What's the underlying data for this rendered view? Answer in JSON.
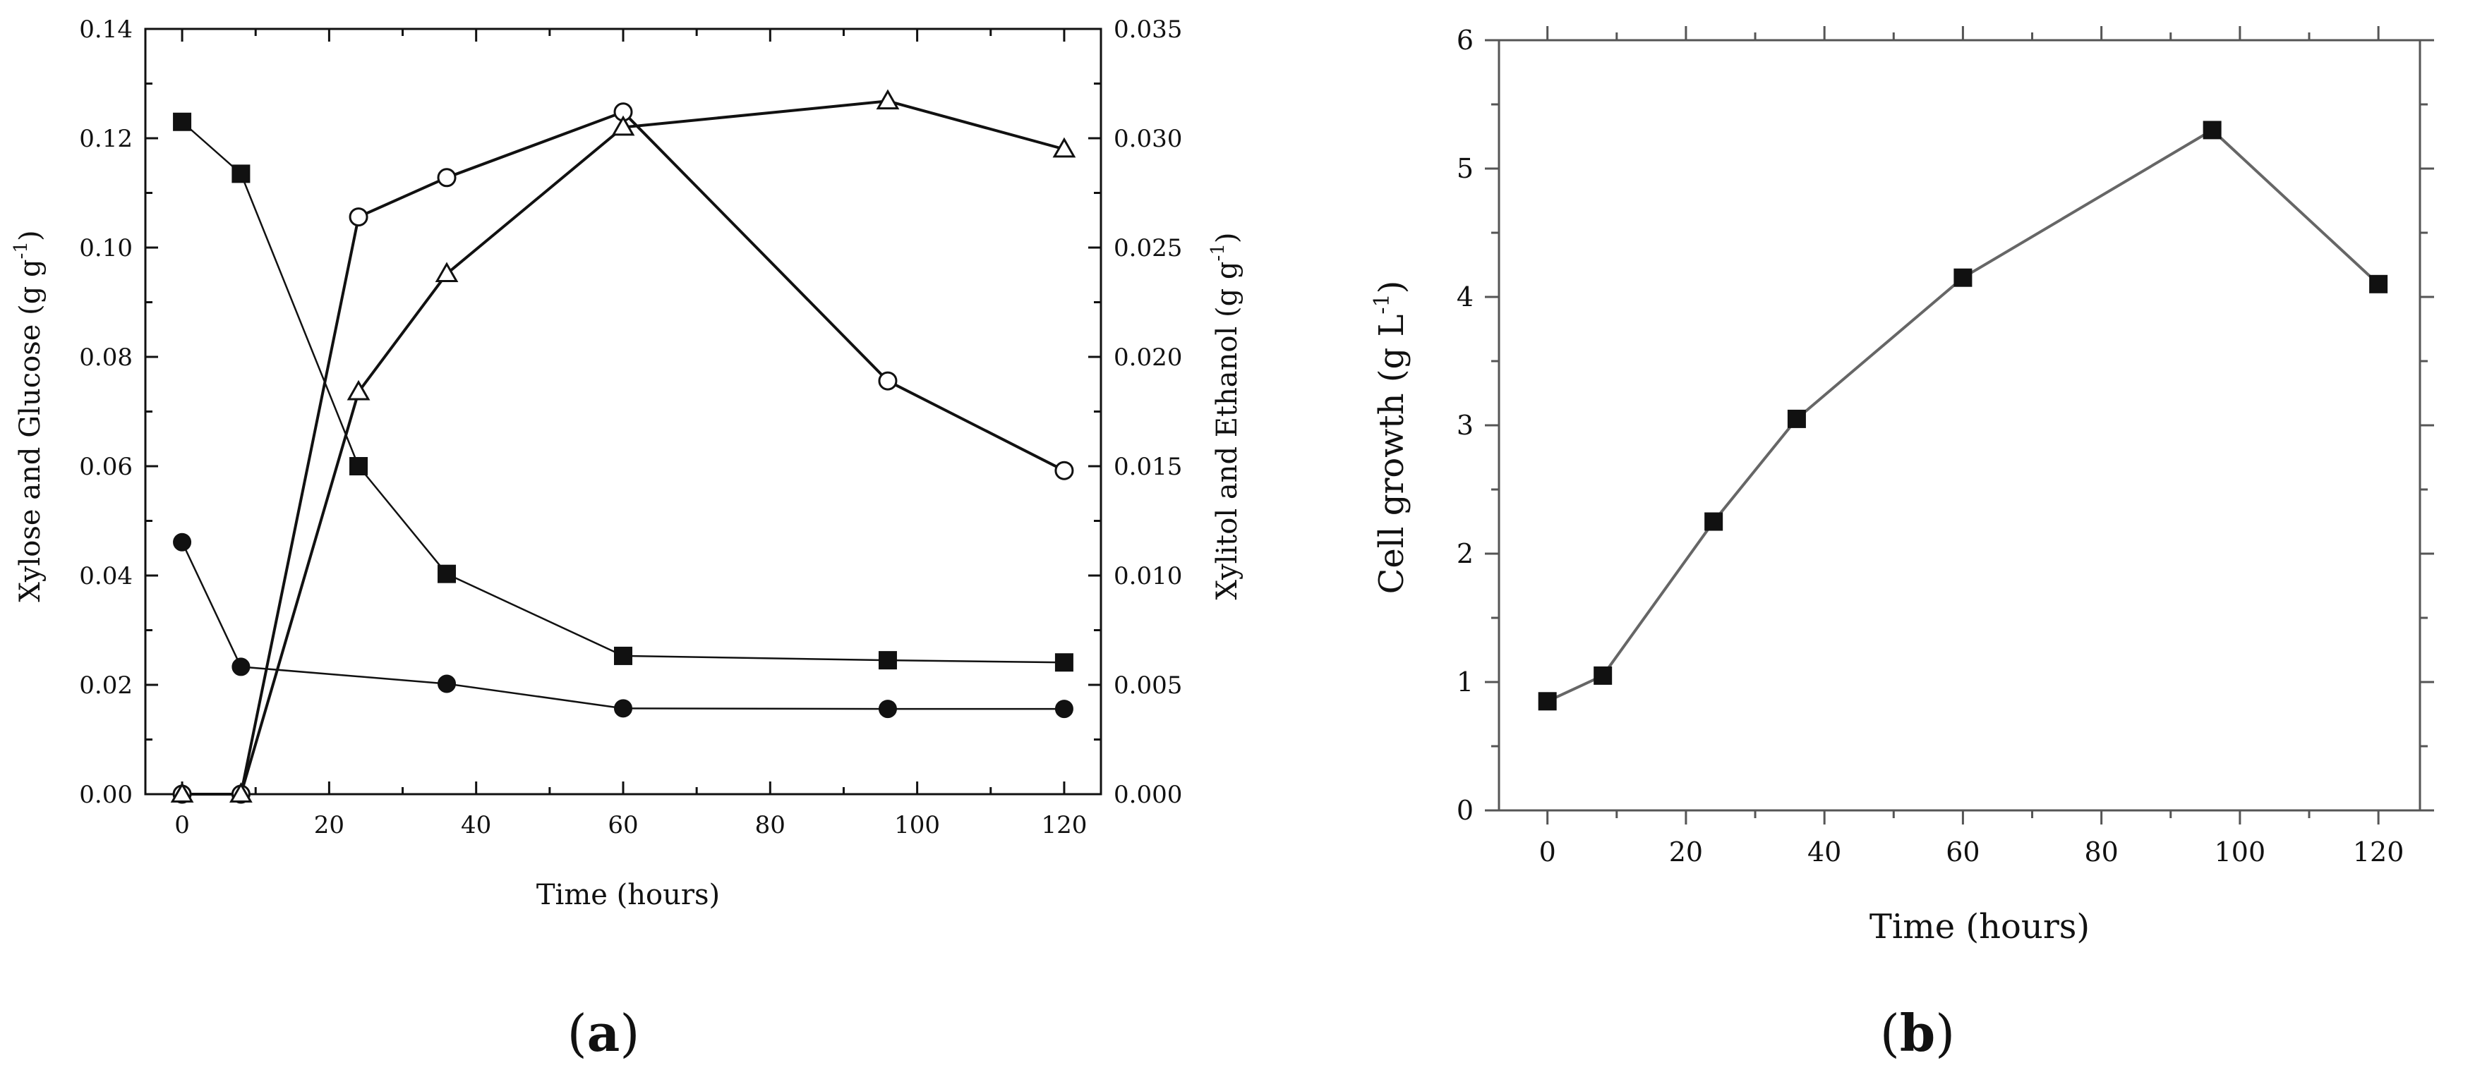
{
  "panels": {
    "a": {
      "label_open": "(",
      "label_letter": "a",
      "label_close": ")"
    },
    "b": {
      "label_open": "(",
      "label_letter": "b",
      "label_close": ")"
    }
  },
  "chart_data": [
    {
      "id": "a",
      "type": "line",
      "title": "",
      "xlabel": "Time (hours)",
      "ylabel_left": "Xylose and Glucose (g g",
      "ylabel_left_sup": "-1",
      "ylabel_left_close": ")",
      "ylabel_right": "Xylitol and Ethanol (g g",
      "ylabel_right_sup": "-1",
      "ylabel_right_close": ")",
      "xlim": [
        -5,
        125
      ],
      "ylim_left": [
        0,
        0.14
      ],
      "ylim_right": [
        0,
        0.035
      ],
      "x_ticks": [
        "0",
        "20",
        "40",
        "60",
        "80",
        "100",
        "120"
      ],
      "y_left_ticks": [
        "0.00",
        "0.02",
        "0.04",
        "0.06",
        "0.08",
        "0.10",
        "0.12",
        "0.14"
      ],
      "y_right_ticks": [
        "0.000",
        "0.005",
        "0.010",
        "0.015",
        "0.020",
        "0.025",
        "0.030",
        "0.035"
      ],
      "series": [
        {
          "name": "Xylose",
          "axis": "left",
          "marker": "filled-square",
          "x": [
            0,
            8,
            24,
            36,
            60,
            96,
            120
          ],
          "y": [
            0.123,
            0.1135,
            0.06,
            0.0403,
            0.0253,
            0.0245,
            0.0241
          ]
        },
        {
          "name": "Glucose",
          "axis": "left",
          "marker": "filled-circle",
          "x": [
            0,
            8,
            36,
            60,
            96,
            120
          ],
          "y": [
            0.0461,
            0.0233,
            0.0202,
            0.0157,
            0.0156,
            0.0156
          ]
        },
        {
          "name": "Xylitol",
          "axis": "right",
          "marker": "open-circle",
          "x": [
            0,
            8,
            24,
            36,
            60,
            96,
            120
          ],
          "y": [
            0.0,
            0.0,
            0.0264,
            0.0282,
            0.0312,
            0.0189,
            0.0148
          ]
        },
        {
          "name": "Ethanol",
          "axis": "right",
          "marker": "open-triangle",
          "x": [
            0,
            8,
            24,
            36,
            60,
            96,
            120
          ],
          "y": [
            0.0,
            0.0,
            0.0184,
            0.0238,
            0.0305,
            0.0317,
            0.0295
          ]
        }
      ]
    },
    {
      "id": "b",
      "type": "line",
      "title": "",
      "xlabel": "Time (hours)",
      "ylabel": "Cell growth (g L",
      "ylabel_sup": "-1",
      "ylabel_close": ")",
      "xlim": [
        -7,
        126
      ],
      "ylim": [
        0,
        6
      ],
      "x_ticks": [
        "0",
        "20",
        "40",
        "60",
        "80",
        "100",
        "120"
      ],
      "y_ticks": [
        "0",
        "1",
        "2",
        "3",
        "4",
        "5",
        "6"
      ],
      "series": [
        {
          "name": "Cell growth",
          "marker": "filled-square",
          "x": [
            0,
            8,
            24,
            36,
            60,
            96,
            120
          ],
          "y": [
            0.85,
            1.05,
            2.25,
            3.05,
            4.15,
            5.3,
            4.1
          ]
        }
      ]
    }
  ]
}
